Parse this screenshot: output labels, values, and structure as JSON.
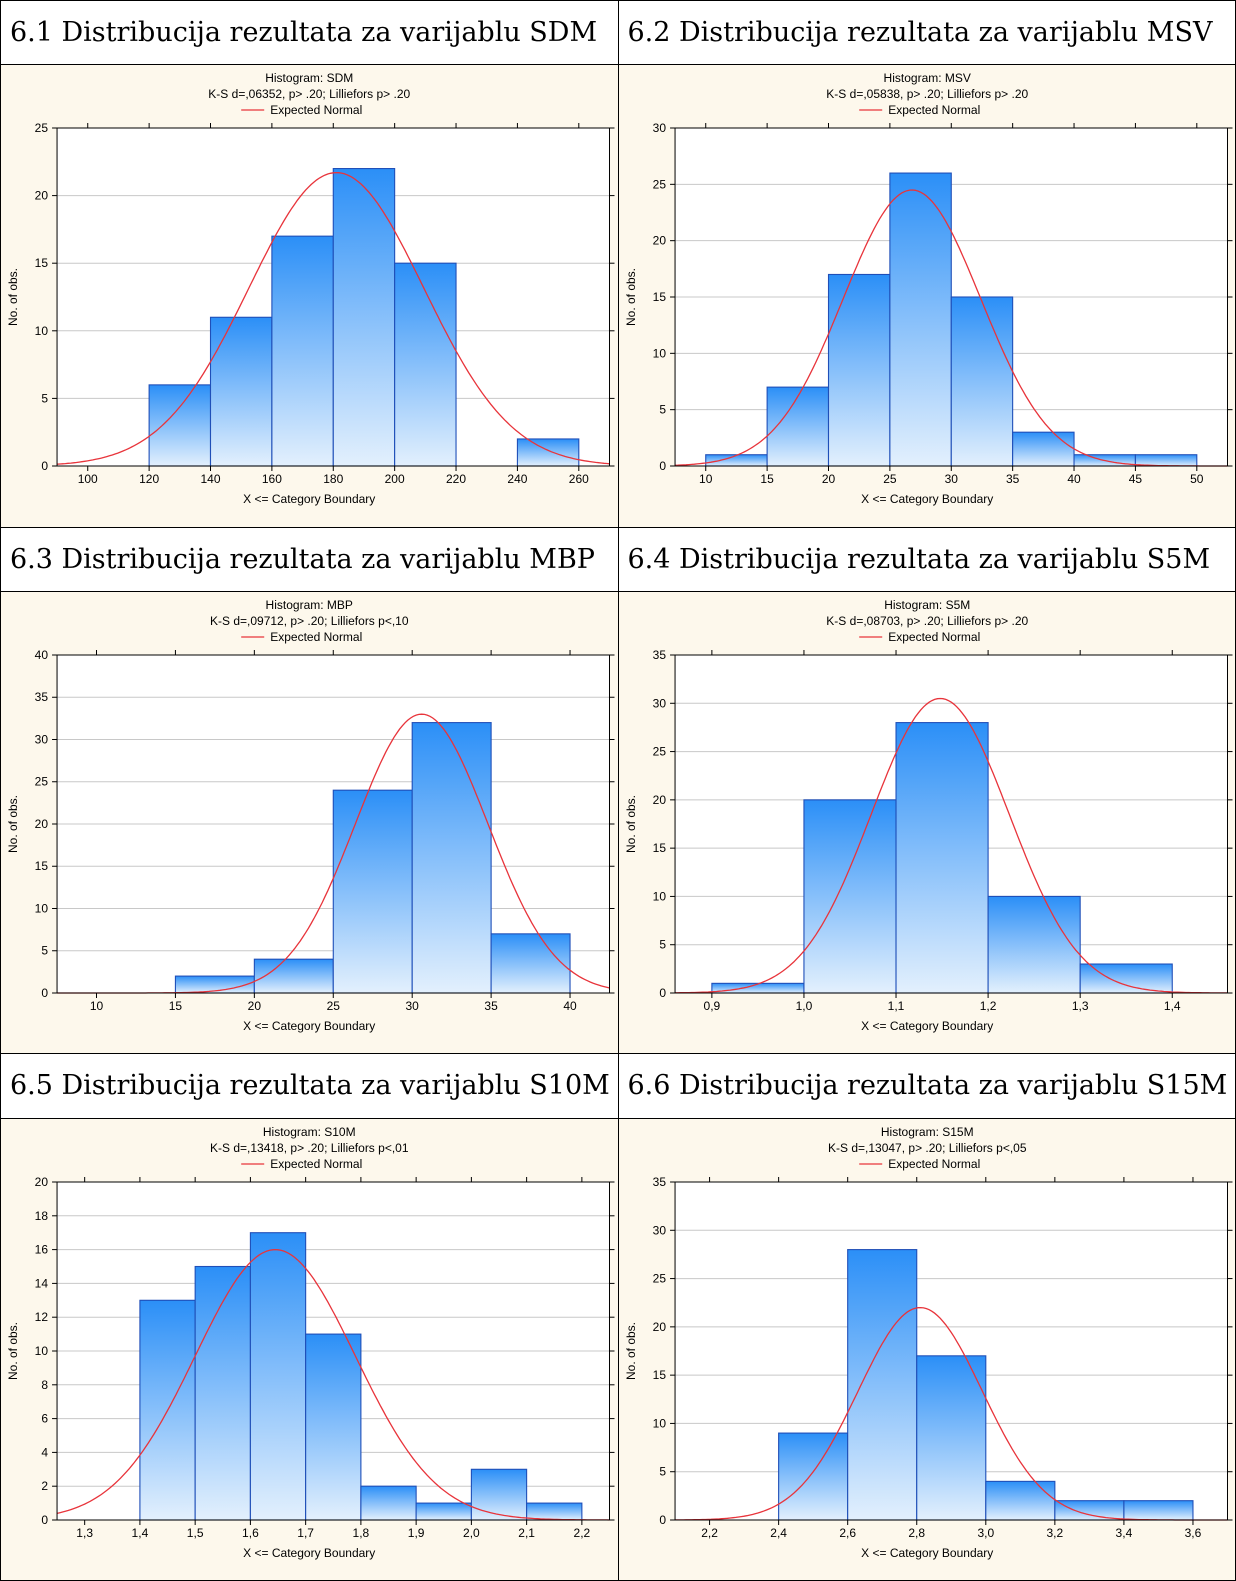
{
  "sections": [
    {
      "heading": "6.1 Distribucija rezultata za varijablu SDM"
    },
    {
      "heading": "6.2 Distribucija rezultata za varijablu MSV"
    },
    {
      "heading": "6.3 Distribucija rezultata za varijablu MBP"
    },
    {
      "heading": "6.4 Distribucija rezultata za varijablu S5M"
    },
    {
      "heading": "6.5 Distribucija rezultata za varijablu S10M"
    },
    {
      "heading": "6.6 Distribucija rezultata za varijablu S15M"
    }
  ],
  "colors": {
    "bar_top": "#2b8ff7",
    "bar_bottom": "#e3f0fd",
    "bar_edge": "#1f4fb8",
    "curve": "#e8343b",
    "background": "#fdf8ec",
    "gridline": "#c8c8c8"
  },
  "chart_data": [
    {
      "type": "bar",
      "title": "Histogram: SDM",
      "subtitle": "K-S d=,06352, p> .20; Lilliefors p> .20",
      "legend": "Expected Normal",
      "legend_position": "top",
      "xlabel": "X <= Category Boundary",
      "ylabel": "No. of obs.",
      "xlim": [
        90,
        270
      ],
      "ylim": [
        0,
        25
      ],
      "xticks": [
        100,
        120,
        140,
        160,
        180,
        200,
        220,
        240,
        260
      ],
      "xtick_labels": [
        "100",
        "120",
        "140",
        "160",
        "180",
        "200",
        "220",
        "240",
        "260"
      ],
      "yticks": [
        0,
        5,
        10,
        15,
        20,
        25
      ],
      "bins": [
        [
          120,
          140,
          6
        ],
        [
          140,
          160,
          11
        ],
        [
          160,
          180,
          17
        ],
        [
          180,
          200,
          22
        ],
        [
          200,
          220,
          15
        ],
        [
          240,
          260,
          2
        ]
      ],
      "normal": {
        "mean": 181,
        "sd": 28.5,
        "peak": 21.7
      },
      "grid": true
    },
    {
      "type": "bar",
      "title": "Histogram: MSV",
      "subtitle": "K-S d=,05838, p> .20; Lilliefors p> .20",
      "legend": "Expected Normal",
      "legend_position": "top",
      "xlabel": "X <= Category Boundary",
      "ylabel": "No. of obs.",
      "xlim": [
        7.5,
        52.5
      ],
      "ylim": [
        0,
        30
      ],
      "xticks": [
        10,
        15,
        20,
        25,
        30,
        35,
        40,
        45,
        50
      ],
      "xtick_labels": [
        "10",
        "15",
        "20",
        "25",
        "30",
        "35",
        "40",
        "45",
        "50"
      ],
      "yticks": [
        0,
        5,
        10,
        15,
        20,
        25,
        30
      ],
      "bins": [
        [
          10,
          15,
          1
        ],
        [
          15,
          20,
          7
        ],
        [
          20,
          25,
          17
        ],
        [
          25,
          30,
          26
        ],
        [
          30,
          35,
          15
        ],
        [
          35,
          40,
          3
        ],
        [
          40,
          45,
          1
        ],
        [
          45,
          50,
          1
        ]
      ],
      "normal": {
        "mean": 26.8,
        "sd": 5.6,
        "peak": 24.5
      },
      "grid": true
    },
    {
      "type": "bar",
      "title": "Histogram: MBP",
      "subtitle": "K-S d=,09712, p> .20; Lilliefors p<,10",
      "legend": "Expected Normal",
      "legend_position": "top",
      "xlabel": "X <= Category Boundary",
      "ylabel": "No. of obs.",
      "xlim": [
        7.5,
        42.5
      ],
      "ylim": [
        0,
        40
      ],
      "xticks": [
        10,
        15,
        20,
        25,
        30,
        35,
        40
      ],
      "xtick_labels": [
        "10",
        "15",
        "20",
        "25",
        "30",
        "35",
        "40"
      ],
      "yticks": [
        0,
        5,
        10,
        15,
        20,
        25,
        30,
        35,
        40
      ],
      "bins": [
        [
          15,
          20,
          2
        ],
        [
          20,
          25,
          4
        ],
        [
          25,
          30,
          24
        ],
        [
          30,
          35,
          32
        ],
        [
          35,
          40,
          7
        ]
      ],
      "normal": {
        "mean": 30.6,
        "sd": 4.2,
        "peak": 33
      },
      "grid": true
    },
    {
      "type": "bar",
      "title": "Histogram: S5M",
      "subtitle": "K-S d=,08703, p> .20; Lilliefors p> .20",
      "legend": "Expected Normal",
      "legend_position": "top",
      "xlabel": "X <= Category Boundary",
      "ylabel": "No. of obs.",
      "xlim": [
        0.86,
        1.46
      ],
      "ylim": [
        0,
        35
      ],
      "xticks": [
        0.9,
        1.0,
        1.1,
        1.2,
        1.3,
        1.4
      ],
      "xtick_labels": [
        "0,9",
        "1,0",
        "1,1",
        "1,2",
        "1,3",
        "1,4"
      ],
      "yticks": [
        0,
        5,
        10,
        15,
        20,
        25,
        30,
        35
      ],
      "bins": [
        [
          0.9,
          1.0,
          1
        ],
        [
          1.0,
          1.1,
          20
        ],
        [
          1.1,
          1.2,
          28
        ],
        [
          1.2,
          1.3,
          10
        ],
        [
          1.3,
          1.4,
          3
        ]
      ],
      "normal": {
        "mean": 1.148,
        "sd": 0.075,
        "peak": 30.5
      },
      "grid": true
    },
    {
      "type": "bar",
      "title": "Histogram: S10M",
      "subtitle": "K-S d=,13418, p> .20; Lilliefors p<,01",
      "legend": "Expected Normal",
      "legend_position": "top",
      "xlabel": "X <= Category Boundary",
      "ylabel": "No. of obs.",
      "xlim": [
        1.25,
        2.25
      ],
      "ylim": [
        0,
        20
      ],
      "xticks": [
        1.3,
        1.4,
        1.5,
        1.6,
        1.7,
        1.8,
        1.9,
        2.0,
        2.1,
        2.2
      ],
      "xtick_labels": [
        "1,3",
        "1,4",
        "1,5",
        "1,6",
        "1,7",
        "1,8",
        "1,9",
        "2,0",
        "2,1",
        "2,2"
      ],
      "yticks": [
        0,
        2,
        4,
        6,
        8,
        10,
        12,
        14,
        16,
        18,
        20
      ],
      "bins": [
        [
          1.4,
          1.5,
          13
        ],
        [
          1.5,
          1.6,
          15
        ],
        [
          1.6,
          1.7,
          17
        ],
        [
          1.7,
          1.8,
          11
        ],
        [
          1.8,
          1.9,
          2
        ],
        [
          1.9,
          2.0,
          1
        ],
        [
          2.0,
          2.1,
          3
        ],
        [
          2.1,
          2.2,
          1
        ]
      ],
      "normal": {
        "mean": 1.645,
        "sd": 0.145,
        "peak": 16
      },
      "grid": true
    },
    {
      "type": "bar",
      "title": "Histogram: S15M",
      "subtitle": "K-S d=,13047, p> .20; Lilliefors p<,05",
      "legend": "Expected Normal",
      "legend_position": "top",
      "xlabel": "X <= Category Boundary",
      "ylabel": "No. of obs.",
      "xlim": [
        2.1,
        3.7
      ],
      "ylim": [
        0,
        35
      ],
      "xticks": [
        2.2,
        2.4,
        2.6,
        2.8,
        3.0,
        3.2,
        3.4,
        3.6
      ],
      "xtick_labels": [
        "2,2",
        "2,4",
        "2,6",
        "2,8",
        "3,0",
        "3,2",
        "3,4",
        "3,6"
      ],
      "yticks": [
        0,
        5,
        10,
        15,
        20,
        25,
        30,
        35
      ],
      "bins": [
        [
          2.4,
          2.6,
          9
        ],
        [
          2.6,
          2.8,
          28
        ],
        [
          2.8,
          3.0,
          17
        ],
        [
          3.0,
          3.2,
          4
        ],
        [
          3.2,
          3.4,
          2
        ],
        [
          3.4,
          3.6,
          2
        ]
      ],
      "normal": {
        "mean": 2.81,
        "sd": 0.18,
        "peak": 22
      },
      "grid": true
    }
  ]
}
